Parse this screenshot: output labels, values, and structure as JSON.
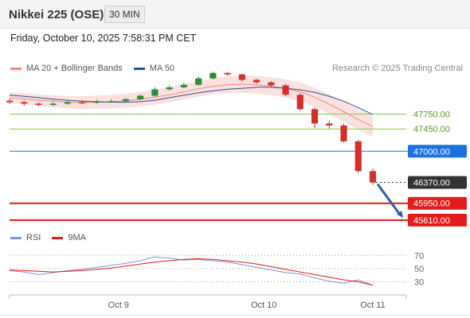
{
  "header": {
    "title": "Nikkei 225 (OSE)",
    "interval": "30 MIN"
  },
  "datetime": "Friday, October 10, 2025 7:58:31 PM CET",
  "legend": {
    "bollinger_label": "MA 20 + Bollinger Bands",
    "ma50_label": "MA 50",
    "rsi_label": "RSI",
    "rsi_ma_label": "9MA"
  },
  "copyright": "Research © 2025 Trading Central",
  "colors": {
    "bollinger": "#f08a80",
    "band_fill": "#f7c9c4",
    "ma50": "#2a4f9a",
    "candle_up": "#2e8b3a",
    "candle_down": "#d32f2f",
    "green_level": "#8bc34a",
    "blue_level": "#1e6fe0",
    "red_level": "#e31b1b",
    "current_price": "#333333",
    "arrow": "#2f5fa8",
    "rsi": "#7b96d8",
    "rsi_ma": "#e31b1b"
  },
  "chart_data": [
    {
      "type": "line",
      "title": "Nikkei 225 (OSE)",
      "ylim": [
        45400,
        48480
      ],
      "x_labels": [
        "Oct 9",
        "Oct 10",
        "Oct 11"
      ],
      "levels": [
        {
          "value": 47750,
          "label": "47750.00",
          "kind": "resistance"
        },
        {
          "value": 47450,
          "label": "47450.00",
          "kind": "resistance"
        },
        {
          "value": 47000,
          "label": "47000.00",
          "kind": "pivot"
        },
        {
          "value": 46370,
          "label": "46370.00",
          "kind": "last"
        },
        {
          "value": 45950,
          "label": "45950.00",
          "kind": "support"
        },
        {
          "value": 45610,
          "label": "45610.00",
          "kind": "support"
        }
      ],
      "series": [
        {
          "name": "MA 20 + Bollinger Bands",
          "values": [
            48080,
            48060,
            48030,
            48010,
            47990,
            47980,
            47990,
            48000,
            48020,
            48050,
            48090,
            48140,
            48200,
            48260,
            48310,
            48340,
            48350,
            48340,
            48310,
            48270,
            48200,
            48090,
            47950,
            47800,
            47640,
            47500
          ]
        },
        {
          "name": "MA 50",
          "values": [
            48130,
            48110,
            48080,
            48050,
            48030,
            48010,
            48000,
            47990,
            47990,
            48000,
            48030,
            48080,
            48130,
            48180,
            48220,
            48250,
            48270,
            48290,
            48290,
            48270,
            48240,
            48190,
            48110,
            48010,
            47880,
            47740
          ]
        }
      ],
      "candles": {
        "open": [
          48020,
          47990,
          47960,
          47940,
          47960,
          47990,
          47980,
          48010,
          48010,
          48050,
          48120,
          48250,
          48290,
          48340,
          48470,
          48580,
          48550,
          48440,
          48390,
          48330,
          48140,
          47850,
          47560,
          47520,
          47200,
          46600
        ],
        "close": [
          47990,
          47960,
          47940,
          47960,
          47990,
          47980,
          48010,
          48010,
          48050,
          48120,
          48250,
          48290,
          48340,
          48470,
          48580,
          48550,
          48440,
          48390,
          48330,
          48140,
          47850,
          47560,
          47520,
          47200,
          46600,
          46370
        ],
        "high": [
          48060,
          48020,
          47990,
          47990,
          48020,
          48030,
          48040,
          48050,
          48080,
          48150,
          48290,
          48330,
          48390,
          48510,
          48610,
          48600,
          48570,
          48460,
          48420,
          48360,
          48170,
          47880,
          47620,
          47560,
          47230,
          46650
        ],
        "low": [
          47950,
          47920,
          47900,
          47910,
          47940,
          47950,
          47960,
          47980,
          48000,
          48030,
          48100,
          48220,
          48270,
          48320,
          48450,
          48520,
          48410,
          48360,
          48300,
          48110,
          47820,
          47470,
          47460,
          47180,
          46560,
          46320
        ]
      }
    },
    {
      "type": "line",
      "title": "RSI",
      "ylim": [
        15,
        80
      ],
      "y_ticks": [
        70,
        50,
        30
      ],
      "series": [
        {
          "name": "RSI",
          "values": [
            47,
            45,
            41,
            44,
            47,
            49,
            52,
            55,
            58,
            62,
            68,
            66,
            63,
            64,
            62,
            60,
            56,
            52,
            48,
            44,
            42,
            36,
            31,
            28,
            33,
            25
          ]
        },
        {
          "name": "9MA",
          "values": [
            48,
            47,
            46,
            45,
            46,
            47,
            49,
            51,
            54,
            57,
            60,
            62,
            64,
            65,
            64,
            62,
            60,
            57,
            53,
            49,
            45,
            41,
            37,
            33,
            30,
            25
          ]
        }
      ]
    }
  ]
}
